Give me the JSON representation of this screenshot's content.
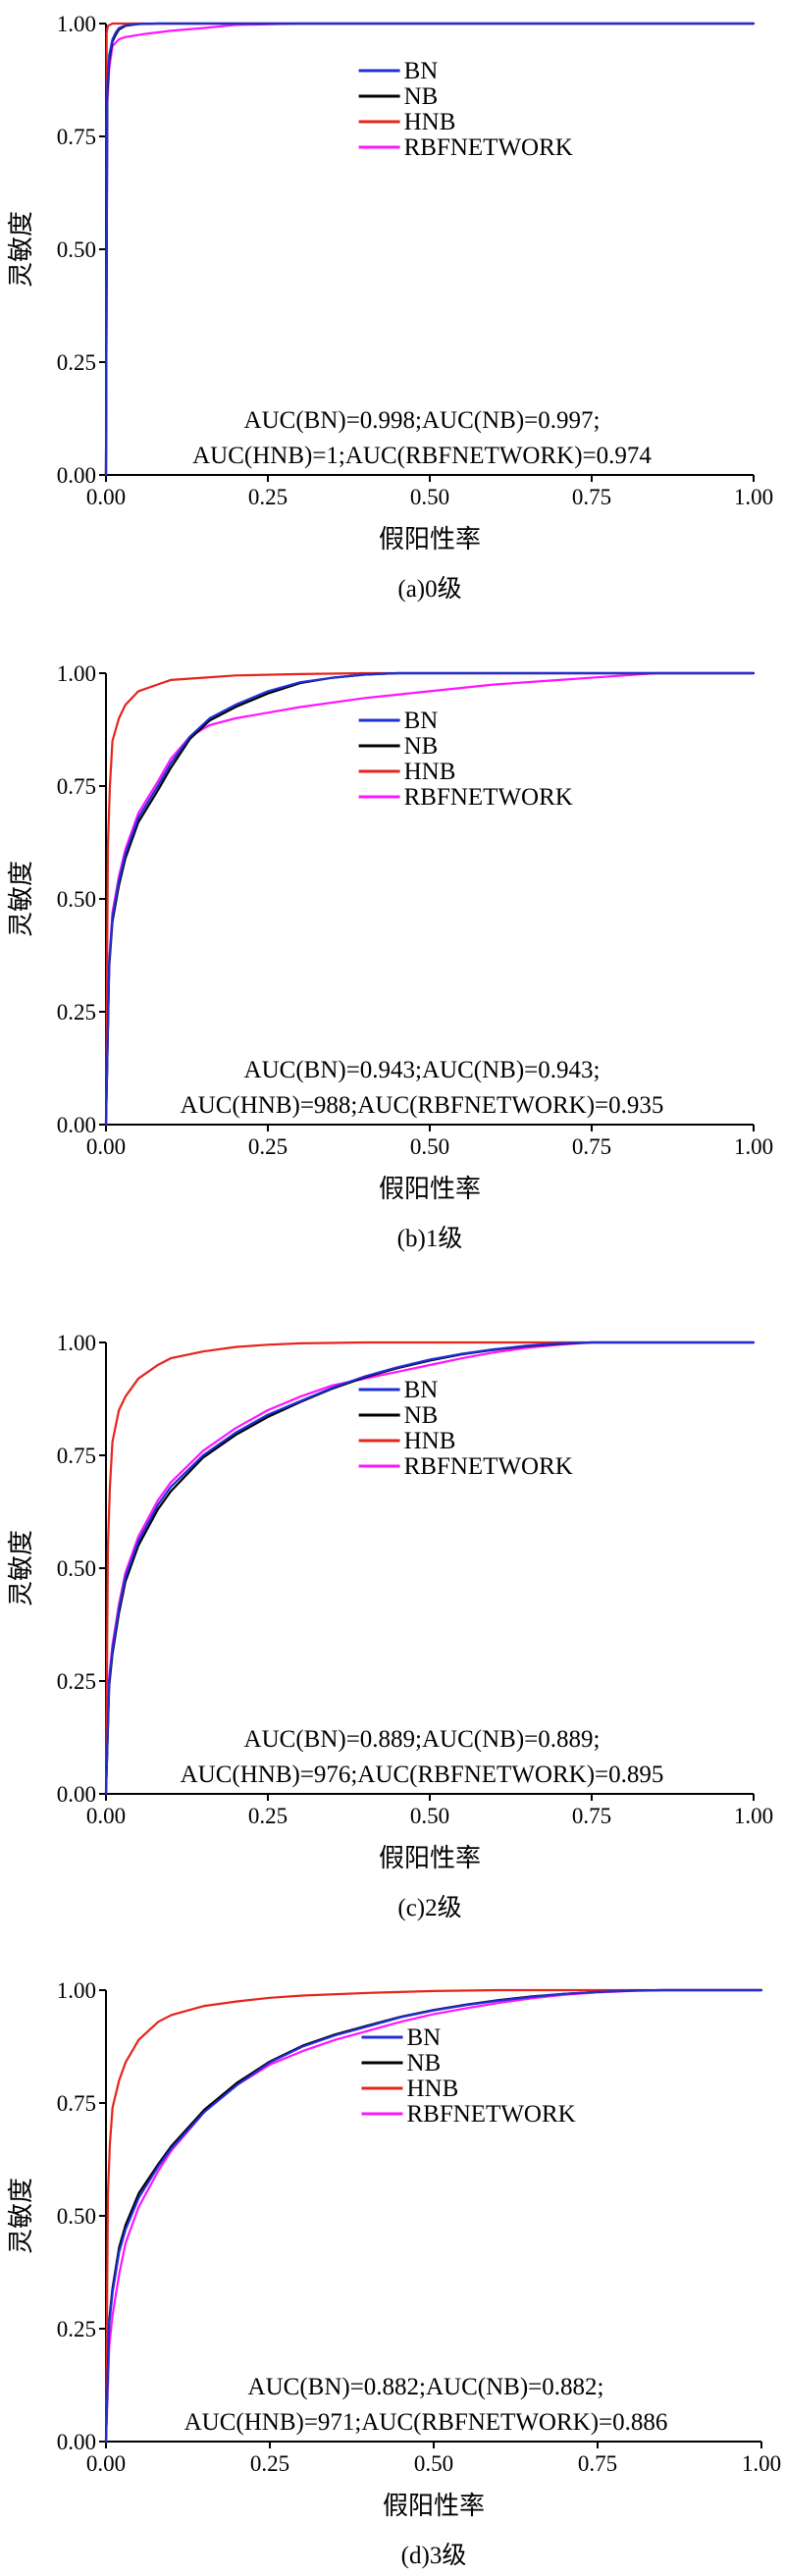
{
  "colors": {
    "BN": "#1f2fd6",
    "NB": "#000000",
    "HNB": "#e5241b",
    "RBFNETWORK": "#ff14ff"
  },
  "chart_data": [
    {
      "type": "line",
      "caption": "(a)0级",
      "xlabel": "假阳性率",
      "ylabel": "灵敏度",
      "xlim": [
        0,
        1
      ],
      "ylim": [
        0,
        1
      ],
      "xticks": [
        "0.00",
        "0.25",
        "0.50",
        "0.75",
        "1.00"
      ],
      "yticks": [
        "0.00",
        "0.25",
        "0.50",
        "0.75",
        "1.00"
      ],
      "grid": false,
      "legend": "top-right",
      "annotation": [
        "AUC(BN)=0.998;AUC(NB)=0.997;",
        "AUC(HNB)=1;AUC(RBFNETWORK)=0.974"
      ],
      "series": [
        {
          "name": "BN",
          "color_key": "BN",
          "x": [
            0,
            0.002,
            0.005,
            0.01,
            0.015,
            0.02,
            0.03,
            0.05,
            0.08,
            1.0
          ],
          "y": [
            0,
            0.86,
            0.93,
            0.965,
            0.98,
            0.99,
            0.996,
            0.999,
            1.0,
            1.0
          ]
        },
        {
          "name": "NB",
          "color_key": "NB",
          "x": [
            0,
            0.002,
            0.005,
            0.01,
            0.015,
            0.02,
            0.03,
            0.05,
            0.08,
            1.0
          ],
          "y": [
            0,
            0.84,
            0.92,
            0.96,
            0.975,
            0.987,
            0.995,
            0.999,
            1.0,
            1.0
          ]
        },
        {
          "name": "HNB",
          "color_key": "HNB",
          "x": [
            0,
            0.001,
            0.003,
            0.01,
            1.0
          ],
          "y": [
            0,
            0.98,
            0.995,
            1.0,
            1.0
          ]
        },
        {
          "name": "RBFNETWORK",
          "color_key": "RBFNETWORK",
          "x": [
            0,
            0.002,
            0.005,
            0.01,
            0.02,
            0.03,
            0.06,
            0.1,
            0.15,
            0.2,
            0.3,
            0.5,
            1.0
          ],
          "y": [
            0,
            0.82,
            0.9,
            0.95,
            0.965,
            0.97,
            0.977,
            0.984,
            0.99,
            0.997,
            1.0,
            1.0,
            1.0
          ]
        }
      ]
    },
    {
      "type": "line",
      "caption": "(b)1级",
      "xlabel": "假阳性率",
      "ylabel": "灵敏度",
      "xlim": [
        0,
        1
      ],
      "ylim": [
        0,
        1
      ],
      "xticks": [
        "0.00",
        "0.25",
        "0.50",
        "0.75",
        "1.00"
      ],
      "yticks": [
        "0.00",
        "0.25",
        "0.50",
        "0.75",
        "1.00"
      ],
      "grid": false,
      "legend": "top-right",
      "annotation": [
        "AUC(BN)=0.943;AUC(NB)=0.943;",
        "AUC(HNB)=988;AUC(RBFNETWORK)=0.935"
      ],
      "series": [
        {
          "name": "BN",
          "color_key": "BN",
          "x": [
            0,
            0.005,
            0.01,
            0.02,
            0.03,
            0.05,
            0.08,
            0.1,
            0.13,
            0.16,
            0.2,
            0.25,
            0.3,
            0.35,
            0.4,
            0.45,
            0.5,
            1.0
          ],
          "y": [
            0,
            0.36,
            0.46,
            0.54,
            0.6,
            0.68,
            0.75,
            0.8,
            0.86,
            0.9,
            0.93,
            0.96,
            0.98,
            0.99,
            0.997,
            1.0,
            1.0,
            1.0
          ]
        },
        {
          "name": "NB",
          "color_key": "NB",
          "x": [
            0,
            0.005,
            0.01,
            0.02,
            0.03,
            0.05,
            0.08,
            0.1,
            0.13,
            0.16,
            0.2,
            0.25,
            0.3,
            0.35,
            0.4,
            0.45,
            0.5,
            1.0
          ],
          "y": [
            0,
            0.35,
            0.45,
            0.53,
            0.59,
            0.67,
            0.74,
            0.79,
            0.855,
            0.895,
            0.925,
            0.955,
            0.978,
            0.99,
            0.997,
            1.0,
            1.0,
            1.0
          ]
        },
        {
          "name": "HNB",
          "color_key": "HNB",
          "x": [
            0,
            0.003,
            0.006,
            0.01,
            0.02,
            0.03,
            0.05,
            0.08,
            0.1,
            0.15,
            0.2,
            0.3,
            0.4,
            0.5,
            1.0
          ],
          "y": [
            0,
            0.62,
            0.75,
            0.85,
            0.9,
            0.93,
            0.96,
            0.975,
            0.985,
            0.99,
            0.995,
            0.998,
            1.0,
            1.0,
            1.0
          ]
        },
        {
          "name": "RBFNETWORK",
          "color_key": "RBFNETWORK",
          "x": [
            0,
            0.005,
            0.01,
            0.02,
            0.03,
            0.05,
            0.08,
            0.1,
            0.13,
            0.16,
            0.2,
            0.3,
            0.4,
            0.5,
            0.6,
            0.7,
            0.8,
            0.85,
            0.9,
            1.0
          ],
          "y": [
            0,
            0.36,
            0.47,
            0.55,
            0.61,
            0.69,
            0.76,
            0.81,
            0.86,
            0.885,
            0.9,
            0.925,
            0.945,
            0.96,
            0.975,
            0.985,
            0.995,
            1.0,
            1.0,
            1.0
          ]
        }
      ]
    },
    {
      "type": "line",
      "caption": "(c)2级",
      "xlabel": "假阳性率",
      "ylabel": "灵敏度",
      "xlim": [
        0,
        1
      ],
      "ylim": [
        0,
        1
      ],
      "xticks": [
        "0.00",
        "0.25",
        "0.50",
        "0.75",
        "1.00"
      ],
      "yticks": [
        "0.00",
        "0.25",
        "0.50",
        "0.75",
        "1.00"
      ],
      "grid": false,
      "legend": "top-right",
      "annotation": [
        "AUC(BN)=0.889;AUC(NB)=0.889;",
        "AUC(HNB)=976;AUC(RBFNETWORK)=0.895"
      ],
      "series": [
        {
          "name": "BN",
          "color_key": "BN",
          "x": [
            0,
            0.005,
            0.01,
            0.02,
            0.03,
            0.05,
            0.08,
            0.1,
            0.15,
            0.2,
            0.25,
            0.3,
            0.35,
            0.4,
            0.45,
            0.5,
            0.55,
            0.6,
            0.65,
            0.7,
            0.75,
            1.0
          ],
          "y": [
            0,
            0.25,
            0.32,
            0.41,
            0.48,
            0.56,
            0.64,
            0.68,
            0.75,
            0.8,
            0.84,
            0.87,
            0.9,
            0.925,
            0.945,
            0.962,
            0.975,
            0.985,
            0.993,
            0.998,
            1.0,
            1.0
          ]
        },
        {
          "name": "NB",
          "color_key": "NB",
          "x": [
            0,
            0.005,
            0.01,
            0.02,
            0.03,
            0.05,
            0.08,
            0.1,
            0.15,
            0.2,
            0.25,
            0.3,
            0.35,
            0.4,
            0.45,
            0.5,
            0.55,
            0.6,
            0.65,
            0.7,
            0.75,
            1.0
          ],
          "y": [
            0,
            0.24,
            0.31,
            0.4,
            0.47,
            0.55,
            0.63,
            0.67,
            0.745,
            0.795,
            0.835,
            0.868,
            0.898,
            0.923,
            0.943,
            0.96,
            0.974,
            0.984,
            0.992,
            0.997,
            1.0,
            1.0
          ]
        },
        {
          "name": "HNB",
          "color_key": "HNB",
          "x": [
            0,
            0.003,
            0.006,
            0.01,
            0.02,
            0.03,
            0.05,
            0.08,
            0.1,
            0.15,
            0.2,
            0.25,
            0.3,
            0.4,
            0.5,
            1.0
          ],
          "y": [
            0,
            0.55,
            0.68,
            0.78,
            0.85,
            0.88,
            0.92,
            0.95,
            0.965,
            0.98,
            0.99,
            0.995,
            0.998,
            1.0,
            1.0,
            1.0
          ]
        },
        {
          "name": "RBFNETWORK",
          "color_key": "RBFNETWORK",
          "x": [
            0,
            0.005,
            0.01,
            0.02,
            0.03,
            0.05,
            0.08,
            0.1,
            0.15,
            0.2,
            0.25,
            0.3,
            0.35,
            0.4,
            0.45,
            0.5,
            0.55,
            0.6,
            0.65,
            0.7,
            0.75,
            1.0
          ],
          "y": [
            0,
            0.26,
            0.33,
            0.42,
            0.49,
            0.57,
            0.65,
            0.69,
            0.76,
            0.81,
            0.85,
            0.88,
            0.905,
            0.92,
            0.935,
            0.95,
            0.965,
            0.978,
            0.988,
            0.995,
            1.0,
            1.0
          ]
        }
      ]
    },
    {
      "type": "line",
      "caption": "(d)3级",
      "xlabel": "假阳性率",
      "ylabel": "灵敏度",
      "xlim": [
        0,
        1
      ],
      "ylim": [
        0,
        1
      ],
      "xticks": [
        "0.00",
        "0.25",
        "0.50",
        "0.75",
        "1.00"
      ],
      "yticks": [
        "0.00",
        "0.25",
        "0.50",
        "0.75",
        "1.00"
      ],
      "grid": false,
      "legend": "top-right",
      "annotation": [
        "AUC(BN)=0.882;AUC(NB)=0.882;",
        "AUC(HNB)=971;AUC(RBFNETWORK)=0.886"
      ],
      "series": [
        {
          "name": "BN",
          "color_key": "BN",
          "x": [
            0,
            0.005,
            0.01,
            0.02,
            0.03,
            0.05,
            0.08,
            0.1,
            0.15,
            0.2,
            0.25,
            0.3,
            0.35,
            0.4,
            0.45,
            0.5,
            0.55,
            0.6,
            0.65,
            0.7,
            0.75,
            0.8,
            0.85,
            1.0
          ],
          "y": [
            0,
            0.26,
            0.33,
            0.42,
            0.47,
            0.54,
            0.61,
            0.65,
            0.73,
            0.79,
            0.84,
            0.875,
            0.9,
            0.92,
            0.94,
            0.955,
            0.967,
            0.977,
            0.985,
            0.992,
            0.996,
            0.999,
            1.0,
            1.0
          ]
        },
        {
          "name": "NB",
          "color_key": "NB",
          "x": [
            0,
            0.005,
            0.01,
            0.02,
            0.03,
            0.05,
            0.08,
            0.1,
            0.15,
            0.2,
            0.25,
            0.3,
            0.35,
            0.4,
            0.45,
            0.5,
            0.55,
            0.6,
            0.65,
            0.7,
            0.75,
            0.8,
            0.85,
            1.0
          ],
          "y": [
            0,
            0.27,
            0.34,
            0.43,
            0.48,
            0.55,
            0.615,
            0.655,
            0.735,
            0.795,
            0.842,
            0.877,
            0.902,
            0.922,
            0.941,
            0.956,
            0.968,
            0.978,
            0.986,
            0.992,
            0.996,
            0.999,
            1.0,
            1.0
          ]
        },
        {
          "name": "HNB",
          "color_key": "HNB",
          "x": [
            0,
            0.003,
            0.006,
            0.01,
            0.02,
            0.03,
            0.05,
            0.08,
            0.1,
            0.15,
            0.2,
            0.25,
            0.3,
            0.4,
            0.5,
            0.6,
            1.0
          ],
          "y": [
            0,
            0.55,
            0.66,
            0.74,
            0.8,
            0.84,
            0.89,
            0.93,
            0.945,
            0.965,
            0.975,
            0.983,
            0.988,
            0.994,
            0.998,
            1.0,
            1.0
          ]
        },
        {
          "name": "RBFNETWORK",
          "color_key": "RBFNETWORK",
          "x": [
            0,
            0.005,
            0.01,
            0.02,
            0.03,
            0.05,
            0.08,
            0.1,
            0.15,
            0.2,
            0.25,
            0.3,
            0.35,
            0.4,
            0.45,
            0.5,
            0.55,
            0.6,
            0.65,
            0.7,
            0.75,
            0.8,
            0.85,
            1.0
          ],
          "y": [
            0,
            0.21,
            0.28,
            0.37,
            0.44,
            0.52,
            0.6,
            0.645,
            0.73,
            0.79,
            0.835,
            0.865,
            0.89,
            0.91,
            0.93,
            0.947,
            0.96,
            0.972,
            0.982,
            0.99,
            0.995,
            0.998,
            1.0,
            1.0
          ]
        }
      ]
    }
  ]
}
